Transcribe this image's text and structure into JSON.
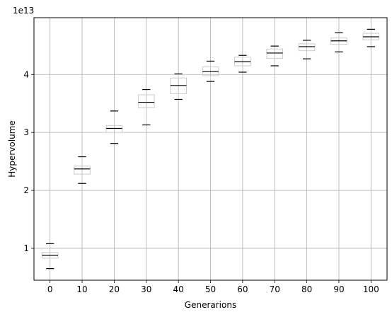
{
  "chart_data": {
    "type": "box",
    "xlabel": "Generarions",
    "ylabel": "Hypervolume",
    "y_offset_label": "1e13",
    "y_scale": 10000000000000.0,
    "grid": true,
    "ylim": [
      0.45,
      4.98
    ],
    "categories": [
      "0",
      "10",
      "20",
      "30",
      "40",
      "50",
      "60",
      "70",
      "80",
      "90",
      "100"
    ],
    "y_ticks": [
      1,
      2,
      3,
      4
    ],
    "series": [
      {
        "x": "0",
        "whisker_low": 0.65,
        "q1": 0.83,
        "median": 0.88,
        "q3": 0.93,
        "whisker_high": 1.08
      },
      {
        "x": "10",
        "whisker_low": 2.12,
        "q1": 2.28,
        "median": 2.37,
        "q3": 2.42,
        "whisker_high": 2.58
      },
      {
        "x": "20",
        "whisker_low": 2.81,
        "q1": 3.0,
        "median": 3.07,
        "q3": 3.12,
        "whisker_high": 3.37
      },
      {
        "x": "30",
        "whisker_low": 3.13,
        "q1": 3.43,
        "median": 3.52,
        "q3": 3.65,
        "whisker_high": 3.74
      },
      {
        "x": "40",
        "whisker_low": 3.57,
        "q1": 3.67,
        "median": 3.81,
        "q3": 3.94,
        "whisker_high": 4.01
      },
      {
        "x": "50",
        "whisker_low": 3.88,
        "q1": 3.98,
        "median": 4.05,
        "q3": 4.13,
        "whisker_high": 4.23
      },
      {
        "x": "60",
        "whisker_low": 4.04,
        "q1": 4.15,
        "median": 4.22,
        "q3": 4.3,
        "whisker_high": 4.33
      },
      {
        "x": "70",
        "whisker_low": 4.15,
        "q1": 4.28,
        "median": 4.37,
        "q3": 4.44,
        "whisker_high": 4.49
      },
      {
        "x": "80",
        "whisker_low": 4.27,
        "q1": 4.41,
        "median": 4.48,
        "q3": 4.53,
        "whisker_high": 4.59
      },
      {
        "x": "90",
        "whisker_low": 4.39,
        "q1": 4.52,
        "median": 4.58,
        "q3": 4.63,
        "whisker_high": 4.72
      },
      {
        "x": "100",
        "whisker_low": 4.48,
        "q1": 4.6,
        "median": 4.65,
        "q3": 4.71,
        "whisker_high": 4.78
      }
    ],
    "colors": {
      "box": "#cccccc",
      "median": "#000000",
      "whisker_cap": "#000000",
      "grid": "#b0b0b0",
      "axis": "#000000"
    }
  }
}
